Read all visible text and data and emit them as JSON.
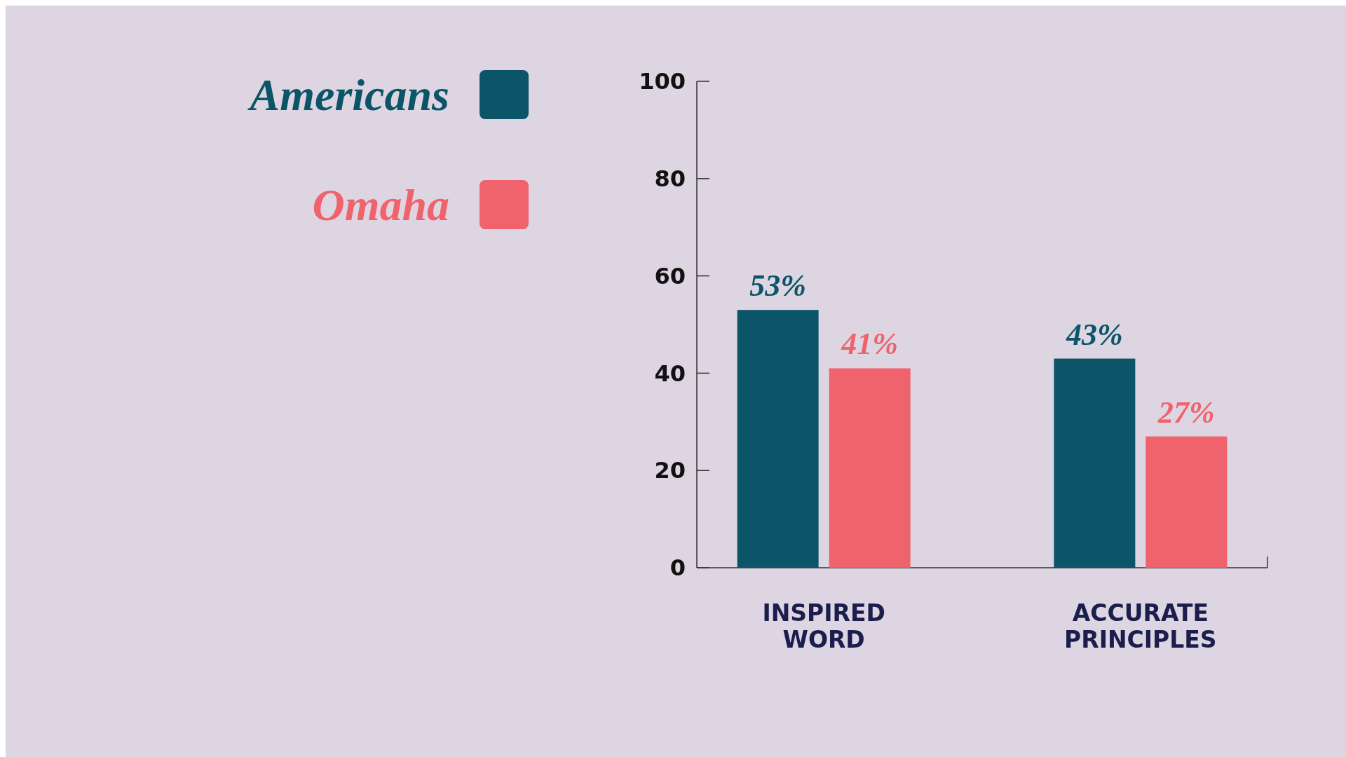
{
  "chart_data": {
    "type": "bar",
    "categories": [
      "INSPIRED WORD",
      "ACCURATE PRINCIPLES"
    ],
    "series": [
      {
        "name": "Americans",
        "color": "#0c5468",
        "values": [
          53,
          43
        ],
        "value_labels": [
          "53%",
          "43%"
        ]
      },
      {
        "name": "Omaha",
        "color": "#f0626c",
        "values": [
          41,
          27
        ],
        "value_labels": [
          "41%",
          "27%"
        ]
      }
    ],
    "ylim": [
      0,
      100
    ],
    "yticks": [
      0,
      20,
      40,
      60,
      80,
      100
    ],
    "grid": false,
    "legend": "top left"
  }
}
